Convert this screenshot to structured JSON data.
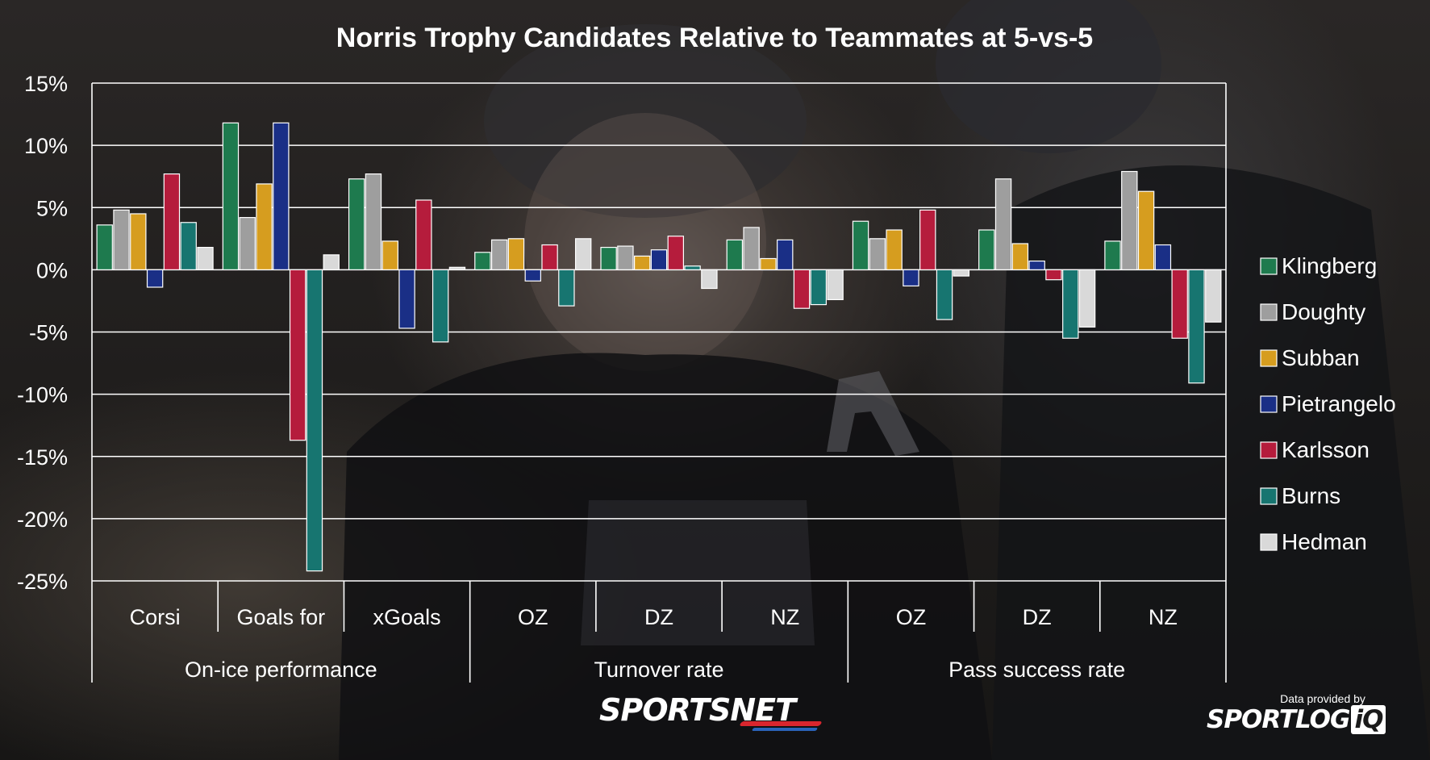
{
  "chart_data": {
    "type": "bar",
    "title": "Norris Trophy Candidates Relative to Teammates at 5-vs-5",
    "ylim": [
      -25,
      15
    ],
    "yticks": [
      15,
      10,
      5,
      0,
      -5,
      -10,
      -15,
      -20,
      -25
    ],
    "ytick_labels": [
      "15%",
      "10%",
      "5%",
      "0%",
      "-5%",
      "-10%",
      "-15%",
      "-20%",
      "-25%"
    ],
    "grid": true,
    "legend_position": "right",
    "categories": [
      "Corsi",
      "Goals for",
      "xGoals",
      "OZ",
      "DZ",
      "NZ",
      "OZ",
      "DZ",
      "NZ"
    ],
    "groups": [
      {
        "label": "On-ice performance",
        "span": 3
      },
      {
        "label": "Turnover rate",
        "span": 3
      },
      {
        "label": "Pass success rate",
        "span": 3
      }
    ],
    "series": [
      {
        "name": "Klingberg",
        "color": "#1e7a4e",
        "values": [
          3.6,
          11.8,
          7.3,
          1.4,
          1.8,
          2.4,
          3.9,
          3.2,
          2.3
        ]
      },
      {
        "name": "Doughty",
        "color": "#9e9e9e",
        "values": [
          4.8,
          4.2,
          7.7,
          2.4,
          1.9,
          3.4,
          2.5,
          7.3,
          7.9
        ]
      },
      {
        "name": "Subban",
        "color": "#d69d1f",
        "values": [
          4.5,
          6.9,
          2.3,
          2.5,
          1.1,
          0.9,
          3.2,
          2.1,
          6.3
        ]
      },
      {
        "name": "Pietrangelo",
        "color": "#1a2f86",
        "values": [
          -1.4,
          11.8,
          -4.7,
          -0.9,
          1.6,
          2.4,
          -1.3,
          0.7,
          2.0
        ]
      },
      {
        "name": "Karlsson",
        "color": "#b51c3c",
        "values": [
          7.7,
          -13.7,
          5.6,
          2.0,
          2.7,
          -3.1,
          4.8,
          -0.8,
          -5.5
        ]
      },
      {
        "name": "Burns",
        "color": "#177570",
        "values": [
          3.8,
          -24.2,
          -5.8,
          -2.9,
          0.3,
          -2.8,
          -4.0,
          -5.5,
          -9.1
        ]
      },
      {
        "name": "Hedman",
        "color": "#d9d9d9",
        "values": [
          1.8,
          1.2,
          0.2,
          2.5,
          -1.5,
          -2.4,
          -0.5,
          -4.6,
          -4.2
        ]
      }
    ]
  },
  "footer": {
    "brand": "SPORTSNET",
    "credit_caption": "Data provided by",
    "credit_brand_main": "SPORTLOG",
    "credit_brand_tag": "iQ"
  }
}
